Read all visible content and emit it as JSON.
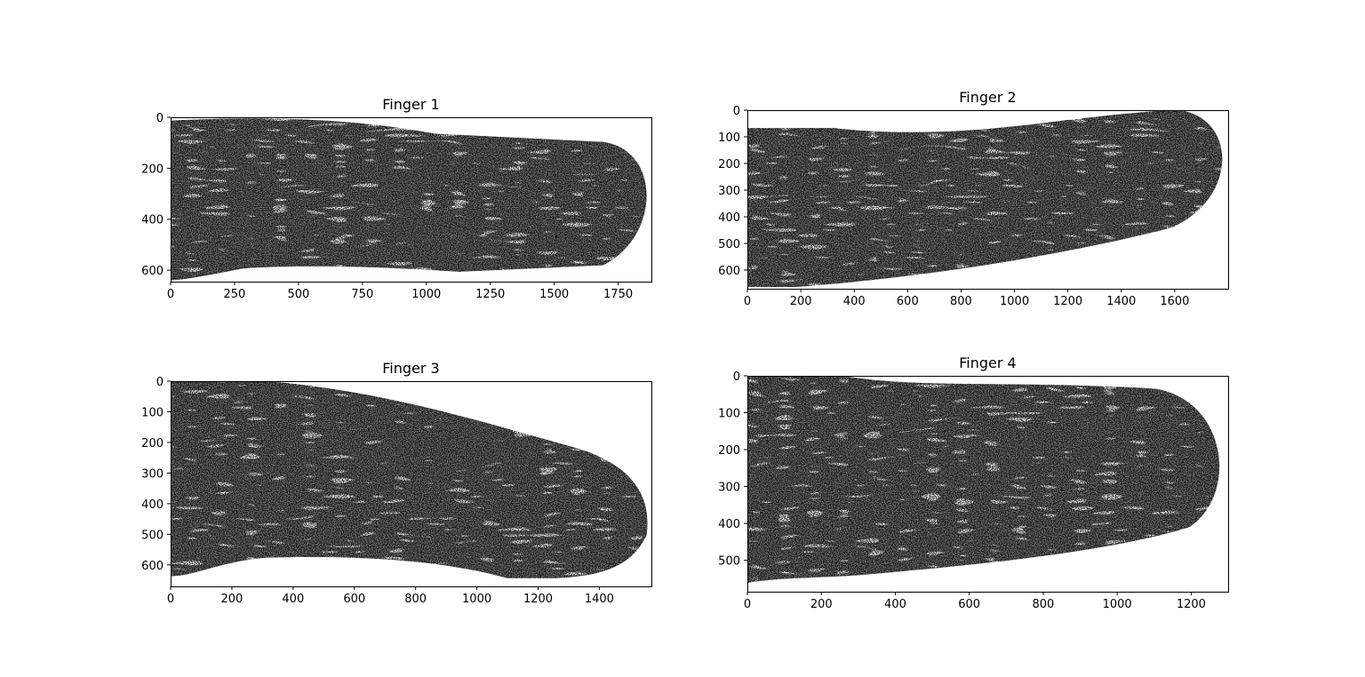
{
  "figure": {
    "background": "#ffffff",
    "ink": "#000000"
  },
  "chart_data": [
    {
      "type": "image",
      "title": "Finger 1",
      "xlim": [
        0,
        1880
      ],
      "ylim": [
        645,
        0
      ],
      "xticks": [
        0,
        250,
        500,
        750,
        1000,
        1250,
        1500,
        1750
      ],
      "yticks": [
        0,
        200,
        400,
        600
      ]
    },
    {
      "type": "image",
      "title": "Finger 2",
      "xlim": [
        0,
        1800
      ],
      "ylim": [
        670,
        0
      ],
      "xticks": [
        0,
        200,
        400,
        600,
        800,
        1000,
        1200,
        1400,
        1600
      ],
      "yticks": [
        0,
        100,
        200,
        300,
        400,
        500,
        600
      ]
    },
    {
      "type": "image",
      "title": "Finger 3",
      "xlim": [
        0,
        1570
      ],
      "ylim": [
        670,
        0
      ],
      "xticks": [
        0,
        200,
        400,
        600,
        800,
        1000,
        1200,
        1400
      ],
      "yticks": [
        0,
        100,
        200,
        300,
        400,
        500,
        600
      ]
    },
    {
      "type": "image",
      "title": "Finger 4",
      "xlim": [
        0,
        1300
      ],
      "ylim": [
        585,
        0
      ],
      "xticks": [
        0,
        200,
        400,
        600,
        800,
        1000,
        1200
      ],
      "yticks": [
        0,
        100,
        200,
        300,
        400,
        500
      ]
    }
  ]
}
